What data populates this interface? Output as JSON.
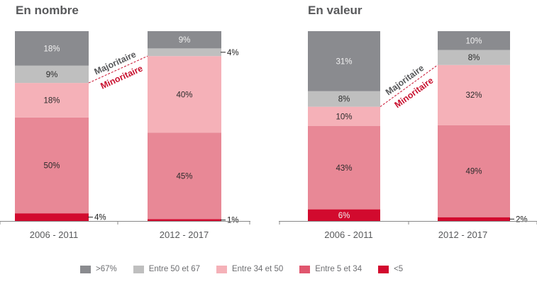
{
  "chart_data": [
    {
      "type": "stacked-bar",
      "title": "En nombre",
      "categories": [
        "2006 - 2011",
        "2012 - 2017"
      ],
      "ylim": [
        0,
        100
      ],
      "series": [
        {
          "name": "<5",
          "color": "#d20a2e",
          "values": [
            4,
            1
          ]
        },
        {
          "name": "Entre 5 et 34",
          "color": "#e88896",
          "values": [
            50,
            45
          ]
        },
        {
          "name": "Entre 34 et 50",
          "color": "#f5b1b8",
          "values": [
            18,
            40
          ]
        },
        {
          "name": "Entre 50 et 67",
          "color": "#bfbfbf",
          "values": [
            9,
            4
          ]
        },
        {
          "name": ">67%",
          "color": "#8a8b8f",
          "values": [
            18,
            9
          ]
        }
      ],
      "labels": [
        [
          "4%",
          "50%",
          "18%",
          "9%",
          "18%"
        ],
        [
          "1%",
          "45%",
          "40%",
          "4%",
          "9%"
        ]
      ],
      "outside_labels": {
        "0": [
          0
        ],
        "1": [
          0,
          3
        ]
      },
      "annotations": {
        "above": "Majoritaire",
        "below": "Minoritaire"
      }
    },
    {
      "type": "stacked-bar",
      "title": "En valeur",
      "categories": [
        "2006 - 2011",
        "2012 - 2017"
      ],
      "ylim": [
        0,
        100
      ],
      "series": [
        {
          "name": "<5",
          "color": "#d20a2e",
          "values": [
            6,
            2
          ]
        },
        {
          "name": "Entre 5 et 34",
          "color": "#e88896",
          "values": [
            43,
            49
          ]
        },
        {
          "name": "Entre 34 et 50",
          "color": "#f5b1b8",
          "values": [
            10,
            32
          ]
        },
        {
          "name": "Entre 50 et 67",
          "color": "#bfbfbf",
          "values": [
            8,
            8
          ]
        },
        {
          "name": ">67%",
          "color": "#8a8b8f",
          "values": [
            31,
            10
          ]
        }
      ],
      "labels": [
        [
          "6%",
          "43%",
          "10%",
          "8%",
          "31%"
        ],
        [
          "2%",
          "49%",
          "32%",
          "8%",
          "10%"
        ]
      ],
      "outside_labels": {
        "0": [],
        "1": [
          0
        ]
      },
      "annotations": {
        "above": "Majoritaire",
        "below": "Minoritaire"
      }
    }
  ],
  "panels": {
    "left_title": "En nombre",
    "right_title": "En valeur"
  },
  "legend": [
    {
      "label": ">67%",
      "color": "#8a8b8f"
    },
    {
      "label": "Entre 50 et 67",
      "color": "#bfbfbf"
    },
    {
      "label": "Entre 34 et 50",
      "color": "#f5b1b8"
    },
    {
      "label": "Entre 5 et 34",
      "color": "#e0566e"
    },
    {
      "label": "<5",
      "color": "#d20a2e"
    }
  ],
  "colors": {
    "majoritaire": "#58595b",
    "minoritaire": "#c8102e",
    "text": "#58595b"
  }
}
